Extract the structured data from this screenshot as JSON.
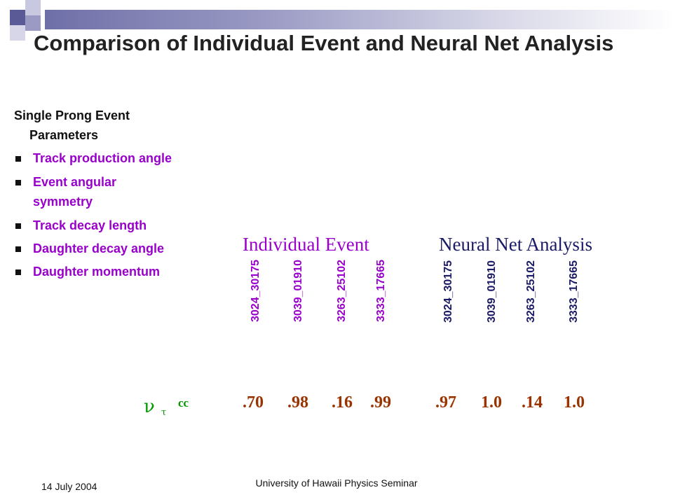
{
  "slide": {
    "title": "Comparison of Individual Event and Neural Net Analysis",
    "intro_line1": "Single Prong Event",
    "intro_line2": "Parameters",
    "bullets": [
      "Track production angle",
      "Event angular symmetry",
      "Track decay length",
      "Daughter decay angle",
      "Daughter momentum"
    ],
    "bullet_marker_icon": "square-bullet-icon",
    "individual_event": {
      "heading": "Individual Event",
      "events": [
        "3024_30175",
        "3039_01910",
        "3263_25102",
        "3333_17665"
      ],
      "values": [
        ".70",
        ".98",
        ".16",
        ".99"
      ]
    },
    "neural_net": {
      "heading": "Neural Net Analysis",
      "events": [
        "3024_30175",
        "3039_01910",
        "3263_25102",
        "3333_17665"
      ],
      "values": [
        ".97",
        "1.0",
        ".14",
        "1.0"
      ]
    },
    "row_label": {
      "nu": "ν",
      "tau": "τ",
      "cc": "cc"
    },
    "footer_date": "14 July 2004",
    "footer_center": "University of Hawaii Physics Seminar"
  },
  "colors": {
    "title": "#222222",
    "bullets": "#9900cc",
    "individual_event": "#9900cc",
    "neural_net": "#1a1a66",
    "values": "#993300",
    "row_label": "#009900",
    "deco_dark": "#5a5a96",
    "deco_mid": "#9a9ac4",
    "deco_light": "#c8c8e0"
  }
}
